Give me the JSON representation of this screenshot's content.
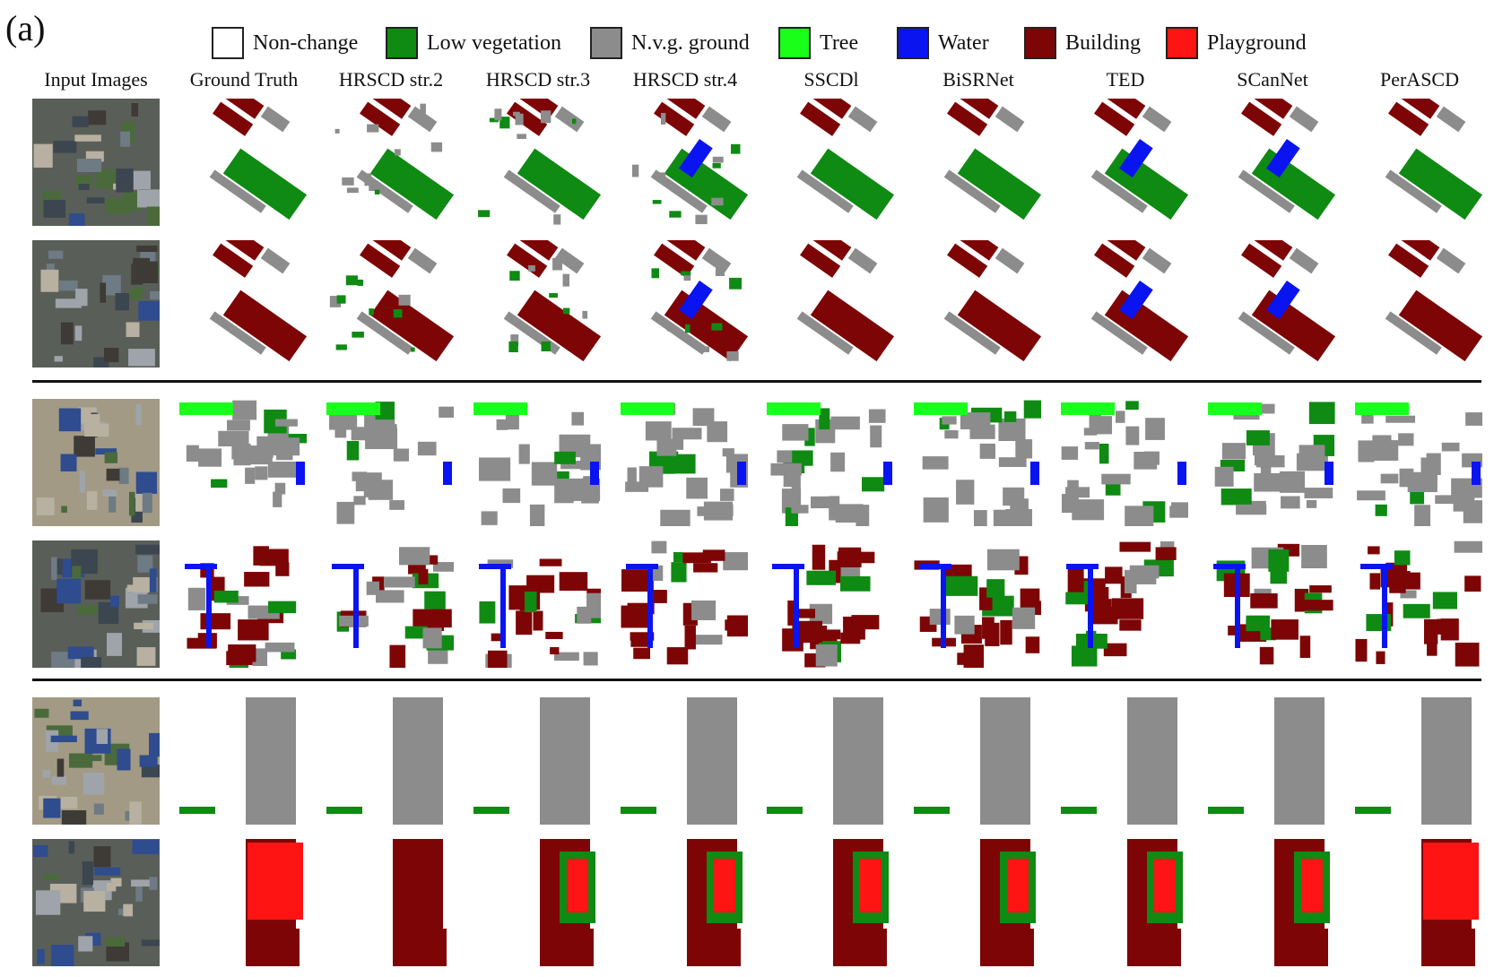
{
  "figure": {
    "panel_label": "(a)",
    "legend": [
      {
        "label": "Non-change",
        "color": "#ffffff"
      },
      {
        "label": "Low vegetation",
        "color": "#0f8a13"
      },
      {
        "label": "N.v.g. ground",
        "color": "#8c8c8c"
      },
      {
        "label": "Tree",
        "color": "#19ff19"
      },
      {
        "label": "Water",
        "color": "#0a14f0"
      },
      {
        "label": "Building",
        "color": "#7d0505"
      },
      {
        "label": "Playground",
        "color": "#ff1414"
      }
    ],
    "columns": [
      "Input Images",
      "Ground Truth",
      "HRSCD str.2",
      "HRSCD str.3",
      "HRSCD str.4",
      "SSCDl",
      "BiSRNet",
      "TED",
      "SCanNet",
      "PerASCD"
    ]
  }
}
